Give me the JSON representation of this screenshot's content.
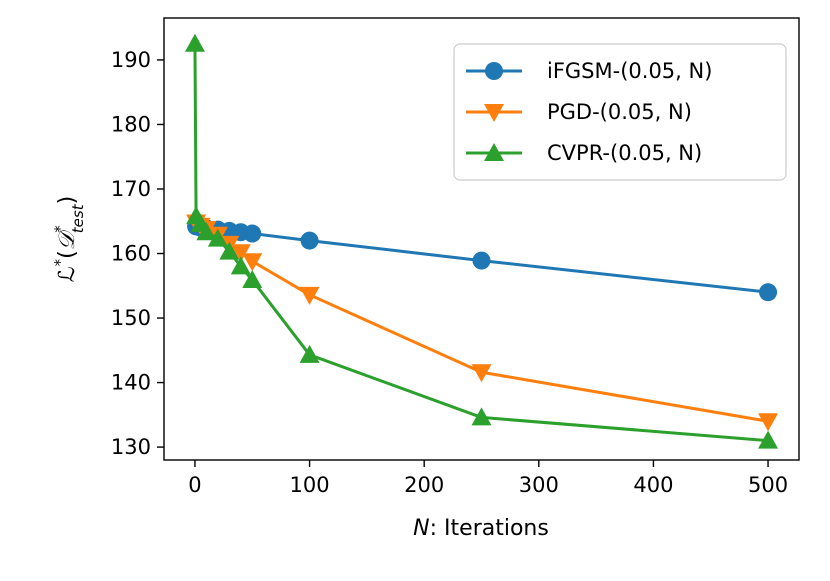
{
  "chart_data": {
    "type": "line",
    "title": "",
    "xlabel_var": "N",
    "xlabel_rest": ": Iterations",
    "ylabel": "L*(D*_test)",
    "ylabel_parts": {
      "main": "ℒ",
      "sup": "*",
      "open": "(",
      "d": "𝒟",
      "d_sup": "*",
      "d_sub": "test",
      "close": ")"
    },
    "xlim": [
      -27,
      527
    ],
    "ylim": [
      128,
      196.5
    ],
    "xticks": [
      0,
      100,
      200,
      300,
      400,
      500
    ],
    "yticks": [
      130,
      140,
      150,
      160,
      170,
      180,
      190
    ],
    "legend_position": "top-right",
    "grid": false,
    "series": [
      {
        "name": "iFGSM-(0.05, N)",
        "color": "#1f77b4",
        "marker": "circle",
        "x": [
          1,
          5,
          10,
          20,
          30,
          40,
          50,
          100,
          250,
          500
        ],
        "y": [
          164.2,
          164.0,
          163.9,
          163.7,
          163.5,
          163.3,
          163.1,
          162.0,
          158.9,
          154.0
        ]
      },
      {
        "name": "PGD-(0.05, N)",
        "color": "#ff7f0e",
        "marker": "triangle-down",
        "x": [
          1,
          5,
          10,
          20,
          30,
          40,
          50,
          100,
          250,
          500
        ],
        "y": [
          164.8,
          164.3,
          163.8,
          162.9,
          161.5,
          160.2,
          158.8,
          153.6,
          141.6,
          134.0
        ]
      },
      {
        "name": "CVPR-(0.05, N)",
        "color": "#2ca02c",
        "marker": "triangle-up",
        "x": [
          0,
          1,
          5,
          10,
          20,
          30,
          40,
          50,
          100,
          250,
          500
        ],
        "y": [
          192.5,
          165.8,
          164.6,
          163.3,
          162.3,
          160.3,
          158.0,
          155.9,
          144.3,
          134.6,
          131.0
        ]
      }
    ]
  }
}
